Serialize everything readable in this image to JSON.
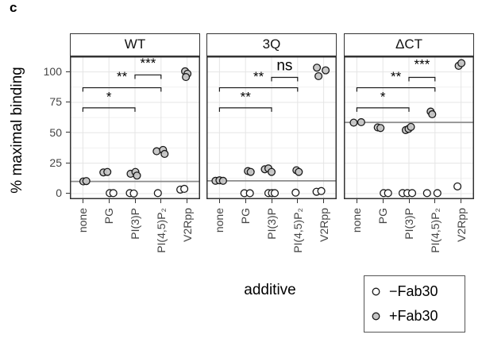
{
  "figure": {
    "panel_label": "c"
  },
  "axes": {
    "y_title": "% maximal binding",
    "x_title": "additive",
    "y_ticks": [
      0,
      25,
      50,
      75,
      100
    ],
    "categories": [
      "none",
      "PG",
      "PI(3)P",
      "PI(4,5)P₂",
      "V2Rpp"
    ]
  },
  "legend": {
    "items": [
      {
        "label": "−Fab30",
        "series": "-Fab30",
        "fill": "#ffffff"
      },
      {
        "label": "+Fab30",
        "series": "+Fab30",
        "fill": "#c6c6c6"
      }
    ]
  },
  "colors": {
    "point_stroke": "#1a1a1a",
    "reference_line": "#8a8a8a",
    "grid_major": "#e5e5e5",
    "grid_minor": "#f1f1f1",
    "panel_border": "#333333"
  },
  "chart_data": {
    "type": "scatter",
    "title": "",
    "xlabel": "additive",
    "ylabel": "% maximal binding",
    "ylim": [
      -5,
      113
    ],
    "y_ticks": [
      0,
      25,
      50,
      75,
      100
    ],
    "y_minor_ticks": [
      12.5,
      37.5,
      62.5,
      87.5
    ],
    "grid": true,
    "legend_position": "bottom-right",
    "categories": [
      "none",
      "PG",
      "PI(3)P",
      "PI(4,5)P₂",
      "V2Rpp"
    ],
    "series_names": [
      "-Fab30",
      "+Fab30"
    ],
    "facets": [
      {
        "label": "WT",
        "reference_line": 10,
        "points": [
          {
            "s": "+Fab30",
            "c": 0,
            "v": 10.0,
            "dx": 0.5
          },
          {
            "s": "+Fab30",
            "c": 0,
            "v": 10.3,
            "dx": 4.3
          },
          {
            "s": "+Fab30",
            "c": 1,
            "v": 17.4,
            "dx": -7
          },
          {
            "s": "+Fab30",
            "c": 1,
            "v": 17.8,
            "dx": -2
          },
          {
            "s": "+Fab30",
            "c": 2,
            "v": 16.3,
            "dx": -5.5
          },
          {
            "s": "+Fab30",
            "c": 2,
            "v": 17.8,
            "dx": 0.5
          },
          {
            "s": "+Fab30",
            "c": 2,
            "v": 14.8,
            "dx": 2.5
          },
          {
            "s": "+Fab30",
            "c": 3,
            "v": 34.8,
            "dx": -5.5
          },
          {
            "s": "+Fab30",
            "c": 3,
            "v": 35.9,
            "dx": 2.5
          },
          {
            "s": "+Fab30",
            "c": 3,
            "v": 32.6,
            "dx": 4.5
          },
          {
            "s": "+Fab30",
            "c": 4,
            "v": 100.5,
            "dx": -2.5
          },
          {
            "s": "+Fab30",
            "c": 4,
            "v": 98.5,
            "dx": 0.5
          },
          {
            "s": "+Fab30",
            "c": 4,
            "v": 95.8,
            "dx": -1.5
          },
          {
            "s": "-Fab30",
            "c": 1,
            "v": 0.4,
            "dx": 1
          },
          {
            "s": "-Fab30",
            "c": 1,
            "v": 0.4,
            "dx": 5.5
          },
          {
            "s": "-Fab30",
            "c": 2,
            "v": 0.4,
            "dx": -6.5
          },
          {
            "s": "-Fab30",
            "c": 2,
            "v": 0.1,
            "dx": -1.5
          },
          {
            "s": "-Fab30",
            "c": 3,
            "v": 0.4,
            "dx": -4
          },
          {
            "s": "-Fab30",
            "c": 4,
            "v": 3.3,
            "dx": -8.5
          },
          {
            "s": "-Fab30",
            "c": 4,
            "v": 3.9,
            "dx": -3.5
          }
        ],
        "significance": [
          {
            "from": 0,
            "to": 2,
            "y": 70.5,
            "label": "*",
            "label_v": 79
          },
          {
            "from": 0,
            "to": 3,
            "y": 87,
            "label": "**",
            "label_v": 95.5
          },
          {
            "from": 2,
            "to": 3,
            "y": 97.5,
            "label": "***",
            "label_v": 106.5
          }
        ]
      },
      {
        "label": "3Q",
        "reference_line": 10.5,
        "points": [
          {
            "s": "+Fab30",
            "c": 0,
            "v": 10.5,
            "dx": -5
          },
          {
            "s": "+Fab30",
            "c": 0,
            "v": 10.9,
            "dx": 0
          },
          {
            "s": "+Fab30",
            "c": 0,
            "v": 10.5,
            "dx": 4.5
          },
          {
            "s": "+Fab30",
            "c": 1,
            "v": 18.5,
            "dx": 3
          },
          {
            "s": "+Fab30",
            "c": 1,
            "v": 17.8,
            "dx": 6.5
          },
          {
            "s": "+Fab30",
            "c": 2,
            "v": 20.0,
            "dx": -8.5
          },
          {
            "s": "+Fab30",
            "c": 2,
            "v": 20.7,
            "dx": -4
          },
          {
            "s": "+Fab30",
            "c": 2,
            "v": 17.8,
            "dx": 0
          },
          {
            "s": "+Fab30",
            "c": 3,
            "v": 19.2,
            "dx": -1.5
          },
          {
            "s": "+Fab30",
            "c": 3,
            "v": 17.8,
            "dx": 1.5
          },
          {
            "s": "+Fab30",
            "c": 4,
            "v": 103.5,
            "dx": -8.5
          },
          {
            "s": "+Fab30",
            "c": 4,
            "v": 101.3,
            "dx": 2.5
          },
          {
            "s": "+Fab30",
            "c": 4,
            "v": 96.5,
            "dx": -6.5
          },
          {
            "s": "-Fab30",
            "c": 1,
            "v": 0.3,
            "dx": -1.5
          },
          {
            "s": "-Fab30",
            "c": 1,
            "v": 0.3,
            "dx": 5.5
          },
          {
            "s": "-Fab30",
            "c": 2,
            "v": 0.4,
            "dx": -4
          },
          {
            "s": "-Fab30",
            "c": 2,
            "v": 0.4,
            "dx": 0.5
          },
          {
            "s": "-Fab30",
            "c": 2,
            "v": 0.4,
            "dx": 4
          },
          {
            "s": "-Fab30",
            "c": 3,
            "v": 0.8,
            "dx": -2.5
          },
          {
            "s": "-Fab30",
            "c": 4,
            "v": 1.5,
            "dx": -9
          },
          {
            "s": "-Fab30",
            "c": 4,
            "v": 2.1,
            "dx": -3
          }
        ],
        "significance": [
          {
            "from": 0,
            "to": 2,
            "y": 70.5,
            "label": "**",
            "label_v": 79
          },
          {
            "from": 0,
            "to": 3,
            "y": 87,
            "label": "**",
            "label_v": 95.5
          },
          {
            "from": 2,
            "to": 3,
            "y": 95.5,
            "label": "ns",
            "label_v": 104.5
          }
        ]
      },
      {
        "label": "ΔCT",
        "reference_line": 58.5,
        "points": [
          {
            "s": "+Fab30",
            "c": 0,
            "v": 58.3,
            "dx": -4
          },
          {
            "s": "+Fab30",
            "c": 0,
            "v": 58.7,
            "dx": 5.5
          },
          {
            "s": "+Fab30",
            "c": 1,
            "v": 54.4,
            "dx": -6.5
          },
          {
            "s": "+Fab30",
            "c": 1,
            "v": 53.9,
            "dx": -3
          },
          {
            "s": "+Fab30",
            "c": 2,
            "v": 52.2,
            "dx": -4
          },
          {
            "s": "+Fab30",
            "c": 2,
            "v": 53.2,
            "dx": -0.5
          },
          {
            "s": "+Fab30",
            "c": 2,
            "v": 54.8,
            "dx": 2.5
          },
          {
            "s": "+Fab30",
            "c": 3,
            "v": 67.4,
            "dx": -5.5
          },
          {
            "s": "+Fab30",
            "c": 3,
            "v": 65.2,
            "dx": -3.5
          },
          {
            "s": "+Fab30",
            "c": 4,
            "v": 105.0,
            "dx": -3
          },
          {
            "s": "+Fab30",
            "c": 4,
            "v": 107.2,
            "dx": 0.5
          },
          {
            "s": "-Fab30",
            "c": 1,
            "v": 0.4,
            "dx": 1
          },
          {
            "s": "-Fab30",
            "c": 1,
            "v": 0.4,
            "dx": 6.5
          },
          {
            "s": "-Fab30",
            "c": 2,
            "v": 0.4,
            "dx": -8
          },
          {
            "s": "-Fab30",
            "c": 2,
            "v": 0.4,
            "dx": -2
          },
          {
            "s": "-Fab30",
            "c": 2,
            "v": 0.4,
            "dx": 4
          },
          {
            "s": "-Fab30",
            "c": 3,
            "v": 0.4,
            "dx": -10
          },
          {
            "s": "-Fab30",
            "c": 3,
            "v": 0.4,
            "dx": 3
          },
          {
            "s": "-Fab30",
            "c": 4,
            "v": 5.9,
            "dx": -4.5
          }
        ],
        "significance": [
          {
            "from": 0,
            "to": 2,
            "y": 70.5,
            "label": "*",
            "label_v": 79
          },
          {
            "from": 0,
            "to": 3,
            "y": 87,
            "label": "**",
            "label_v": 95.5
          },
          {
            "from": 2,
            "to": 3,
            "y": 95.5,
            "label": "***",
            "label_v": 105.5
          }
        ]
      }
    ]
  }
}
